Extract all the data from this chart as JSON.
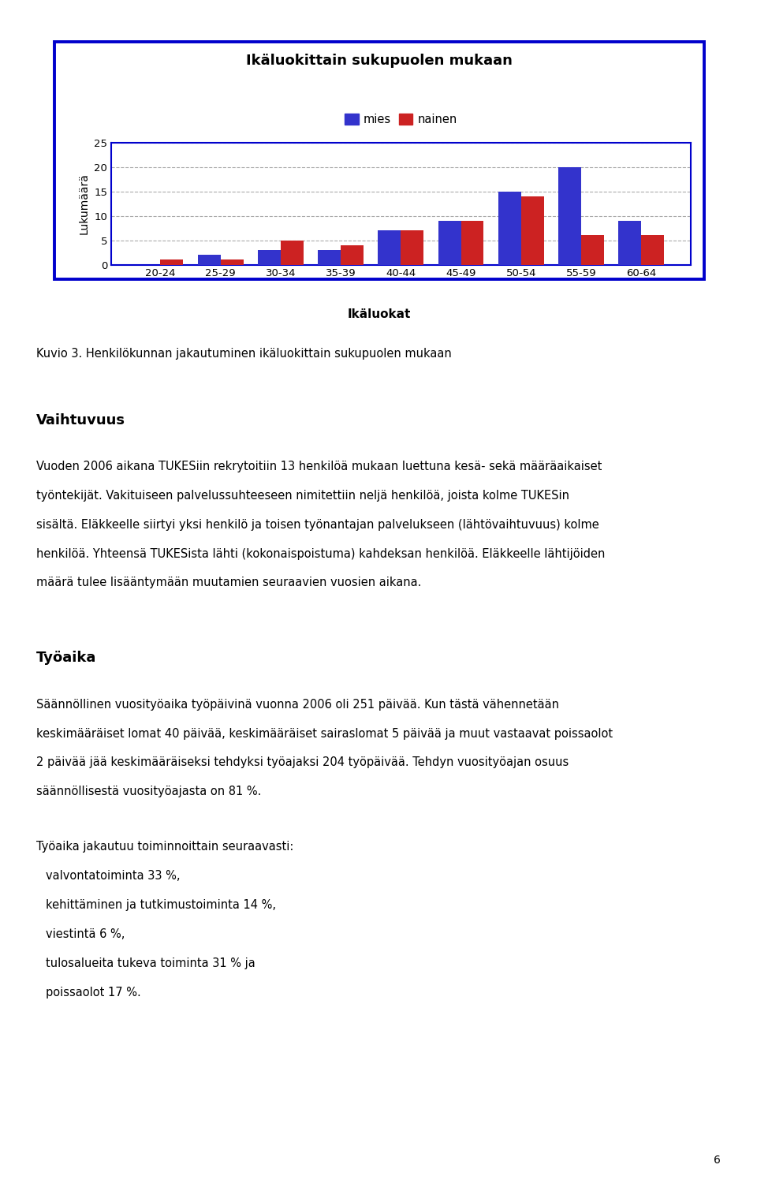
{
  "title": "Ikäluokittain sukupuolen mukaan",
  "legend_labels": [
    "mies",
    "nainen"
  ],
  "categories": [
    "20-24",
    "25-29",
    "30-34",
    "35-39",
    "40-44",
    "45-49",
    "50-54",
    "55-59",
    "60-64"
  ],
  "mies_values": [
    0,
    2,
    3,
    3,
    7,
    9,
    15,
    20,
    9
  ],
  "nainen_values": [
    1,
    1,
    5,
    4,
    7,
    9,
    14,
    6,
    6
  ],
  "ylabel": "Lukumäärä",
  "xlabel": "Ikäluokat",
  "ylim": [
    0,
    25
  ],
  "yticks": [
    0,
    5,
    10,
    15,
    20,
    25
  ],
  "bar_color_mies": "#3333CC",
  "bar_color_nainen": "#CC2222",
  "chart_border_color": "#0000CC",
  "grid_color": "#AAAAAA",
  "background_color": "#FFFFFF",
  "caption": "Kuvio 3. Henkilökunnan jakautuminen ikäluokittain sukupuolen mukaan",
  "section1_header": "Vaihtuvuus",
  "section1_lines": [
    "Vuoden 2006 aikana TUKESiin rekrytoitiin 13 henkilöä mukaan luettuna kesä- sekä määräaikaiset",
    "työntekijät. Vakituiseen palvelussuhteeseen nimitettiin neljä henkilöä, joista kolme TUKESin",
    "sisältä. Eläkkeelle siirtyi yksi henkilö ja toisen työnantajan palvelukseen (lähtövaihtuvuus) kolme",
    "henkilöä. Yhteensä TUKESista lähti (kokonaispoistuma) kahdeksan henkilöä. Eläkkeelle lähtijöiden",
    "määrä tulee lisääntymään muutamien seuraavien vuosien aikana."
  ],
  "section2_header": "Työaika",
  "section2_lines": [
    "Säännöllinen vuosityöaika työpäivinä vuonna 2006 oli 251 päivää. Kun tästä vähennetään",
    "keskimääräiset lomat 40 päivää, keskimääräiset sairaslomat 5 päivää ja muut vastaavat poissaolot",
    "2 päivää jää keskimääräiseksi tehdyksi työajaksi 204 työpäivää. Tehdyn vuosityöajan osuus",
    "säännöllisestä vuosityöajasta on 81 %."
  ],
  "section2_list": [
    "Työaika jakautuu toiminnoittain seuraavasti:",
    "valvontatoiminta 33 %,",
    "kehittäminen ja tutkimustoiminta 14 %,",
    "viestintä 6 %,",
    "tulosalueita tukeva toiminta 31 % ja",
    "poissaolot 17 %."
  ],
  "page_number": "6"
}
